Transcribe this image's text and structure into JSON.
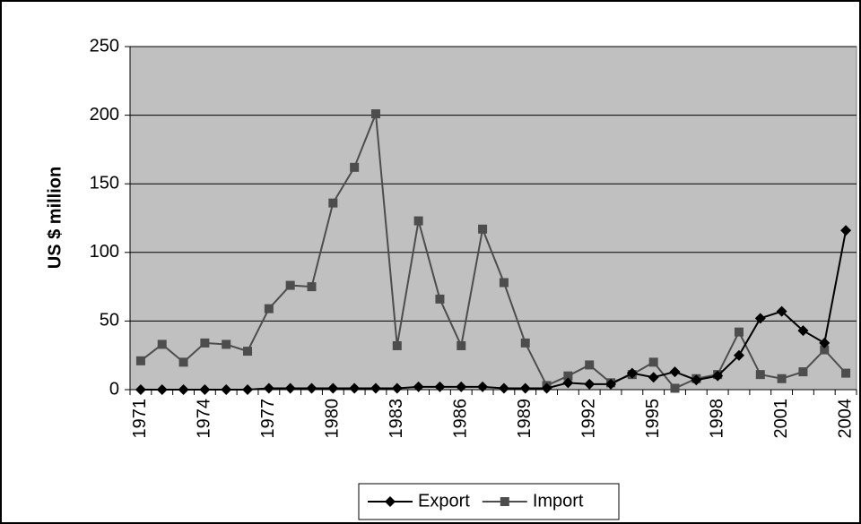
{
  "chart_data": {
    "type": "line",
    "y_label": "US $ million",
    "categories": [
      "1971",
      null,
      null,
      "1974",
      null,
      null,
      "1977",
      null,
      null,
      "1980",
      null,
      null,
      "1983",
      null,
      null,
      "1986",
      null,
      null,
      "1989",
      null,
      null,
      "1992",
      null,
      null,
      "1995",
      null,
      null,
      "1998",
      null,
      null,
      "2001",
      null,
      null,
      "2004"
    ],
    "series": [
      {
        "name": "Export",
        "color": "#000000",
        "marker": "diamond",
        "values": [
          0,
          0,
          0,
          0,
          0,
          0,
          1,
          1,
          1,
          1,
          1,
          1,
          1,
          2,
          2,
          2,
          2,
          1,
          1,
          1,
          5,
          4,
          4,
          12,
          9,
          13,
          7,
          10,
          25,
          52,
          57,
          43,
          34,
          116
        ]
      },
      {
        "name": "Import",
        "color": "#4d4d4d",
        "marker": "square",
        "values": [
          21,
          33,
          20,
          34,
          33,
          28,
          59,
          76,
          75,
          136,
          162,
          201,
          32,
          123,
          66,
          32,
          117,
          78,
          34,
          3,
          10,
          18,
          5,
          11,
          20,
          1,
          8,
          11,
          42,
          11,
          8,
          13,
          29,
          12
        ]
      }
    ],
    "ylim": [
      0,
      250
    ],
    "yticks": [
      0,
      50,
      100,
      150,
      200,
      250
    ],
    "grid": true,
    "plot_color": "#c0c0c0",
    "legend": "bottom"
  }
}
